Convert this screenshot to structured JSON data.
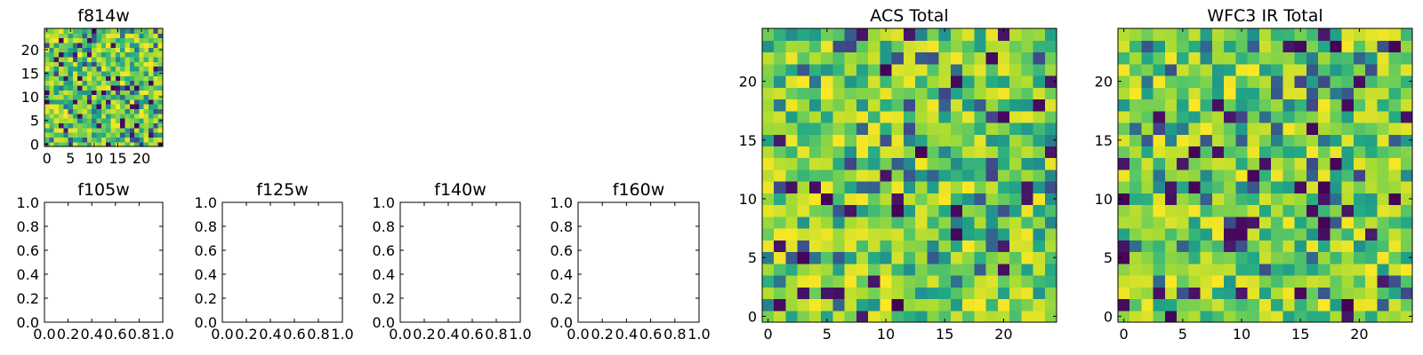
{
  "chart_data": [
    {
      "id": "f814w",
      "type": "heatmap",
      "title": "f814w",
      "grid_size": 25,
      "xlim": [
        -0.5,
        24.5
      ],
      "ylim": [
        -0.5,
        24.5
      ],
      "xticks": [
        0,
        5,
        10,
        15,
        20
      ],
      "yticks": [
        0,
        5,
        10,
        15,
        20
      ],
      "colormap": "viridis",
      "seed": 814
    },
    {
      "id": "f105w",
      "type": "heatmap",
      "title": "f105w",
      "empty": true,
      "xlim": [
        0,
        1
      ],
      "ylim": [
        0,
        1
      ],
      "xticks": [
        "0.0",
        "0.2",
        "0.4",
        "0.6",
        "0.8",
        "1.0"
      ],
      "yticks": [
        "0.0",
        "0.2",
        "0.4",
        "0.6",
        "0.8",
        "1.0"
      ]
    },
    {
      "id": "f125w",
      "type": "heatmap",
      "title": "f125w",
      "empty": true,
      "xlim": [
        0,
        1
      ],
      "ylim": [
        0,
        1
      ],
      "xticks": [
        "0.0",
        "0.2",
        "0.4",
        "0.6",
        "0.8",
        "1.0"
      ],
      "yticks": [
        "0.0",
        "0.2",
        "0.4",
        "0.6",
        "0.8",
        "1.0"
      ]
    },
    {
      "id": "f140w",
      "type": "heatmap",
      "title": "f140w",
      "empty": true,
      "xlim": [
        0,
        1
      ],
      "ylim": [
        0,
        1
      ],
      "xticks": [
        "0.0",
        "0.2",
        "0.4",
        "0.6",
        "0.8",
        "1.0"
      ],
      "yticks": [
        "0.0",
        "0.2",
        "0.4",
        "0.6",
        "0.8",
        "1.0"
      ]
    },
    {
      "id": "f160w",
      "type": "heatmap",
      "title": "f160w",
      "empty": true,
      "xlim": [
        0,
        1
      ],
      "ylim": [
        0,
        1
      ],
      "xticks": [
        "0.0",
        "0.2",
        "0.4",
        "0.6",
        "0.8",
        "1.0"
      ],
      "yticks": [
        "0.0",
        "0.2",
        "0.4",
        "0.6",
        "0.8",
        "1.0"
      ]
    },
    {
      "id": "acs_total",
      "type": "heatmap",
      "title": "ACS Total",
      "grid_size": 25,
      "xlim": [
        -0.5,
        24.5
      ],
      "ylim": [
        -0.5,
        24.5
      ],
      "xticks": [
        0,
        5,
        10,
        15,
        20
      ],
      "yticks": [
        0,
        5,
        10,
        15,
        20
      ],
      "colormap": "viridis",
      "seed": 2
    },
    {
      "id": "wfc3_ir_total",
      "type": "heatmap",
      "title": "WFC3 IR Total",
      "grid_size": 25,
      "xlim": [
        -0.5,
        24.5
      ],
      "ylim": [
        -0.5,
        24.5
      ],
      "xticks": [
        0,
        5,
        10,
        15,
        20
      ],
      "yticks": [
        0,
        5,
        10,
        15,
        20
      ],
      "colormap": "viridis",
      "seed": 3
    }
  ]
}
